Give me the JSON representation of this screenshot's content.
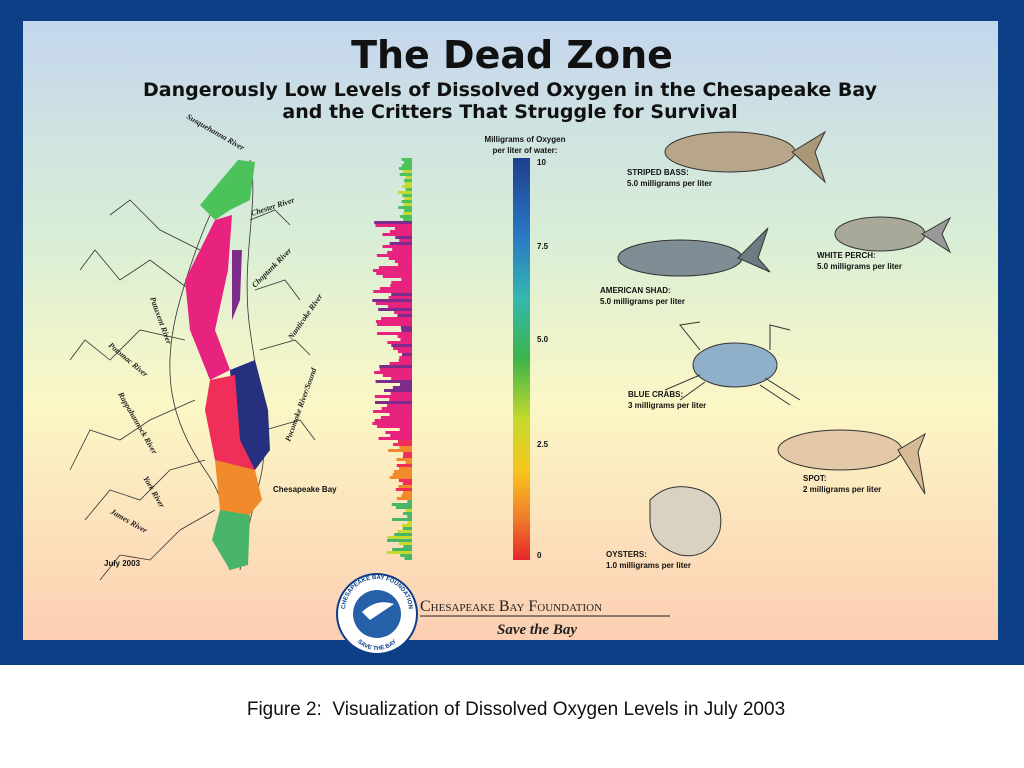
{
  "poster": {
    "title": "The Dead Zone",
    "subtitle": [
      "Dangerously Low Levels of Dissolved Oxygen in the Chesapeake Bay",
      "and the Critters That Struggle for Survival"
    ],
    "rivers": [
      "Susquehanna River",
      "Chester River",
      "Choptank River",
      "Nanticoke River",
      "Patuxent River",
      "Potomac River",
      "Rappahannock River",
      "York River",
      "James River",
      "Pocomoke River/Sound"
    ],
    "bay_label": "Chesapeake Bay",
    "date": "July 2003",
    "legend": {
      "title": [
        "Milligrams of Oxygen",
        "per liter of water:"
      ],
      "ticks": [
        "10",
        "7.5",
        "5.0",
        "2.5",
        "0"
      ]
    },
    "critters": [
      {
        "name": "STRIPED BASS:",
        "level": "5.0 milligrams per liter"
      },
      {
        "name": "WHITE PERCH:",
        "level": "5.0 milligrams per liter"
      },
      {
        "name": "AMERICAN SHAD:",
        "level": "5.0 milligrams per liter"
      },
      {
        "name": "BLUE CRABS:",
        "level": "3 milligrams per liter"
      },
      {
        "name": "SPOT:",
        "level": "2 milligrams per liter"
      },
      {
        "name": "OYSTERS:",
        "level": "1.0 milligrams per liter"
      }
    ],
    "foundation": {
      "name": "Chesapeake Bay Foundation",
      "tagline": "Save the Bay",
      "seal_top": "CHESAPEAKE BAY FOUNDATION",
      "seal_bottom": "SAVE THE BAY"
    }
  },
  "caption": "Figure 2:  Visualization of Dissolved Oxygen Levels in July 2003"
}
